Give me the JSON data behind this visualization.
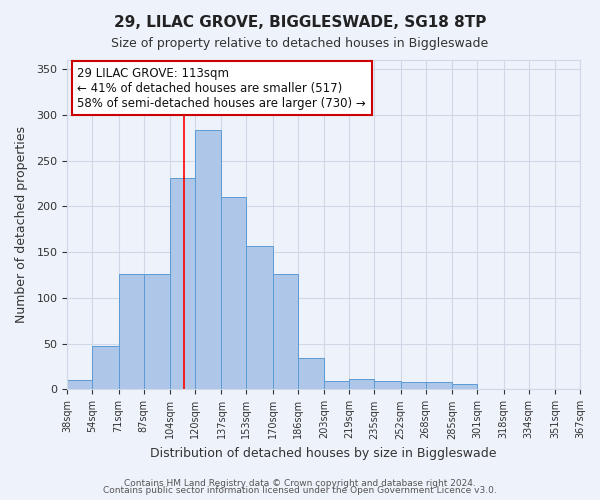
{
  "title": "29, LILAC GROVE, BIGGLESWADE, SG18 8TP",
  "subtitle": "Size of property relative to detached houses in Biggleswade",
  "xlabel": "Distribution of detached houses by size in Biggleswade",
  "ylabel": "Number of detached properties",
  "bin_labels": [
    "38sqm",
    "54sqm",
    "71sqm",
    "87sqm",
    "104sqm",
    "120sqm",
    "137sqm",
    "153sqm",
    "170sqm",
    "186sqm",
    "203sqm",
    "219sqm",
    "235sqm",
    "252sqm",
    "268sqm",
    "285sqm",
    "301sqm",
    "318sqm",
    "334sqm",
    "351sqm",
    "367sqm"
  ],
  "bin_edges": [
    38,
    54,
    71,
    87,
    104,
    120,
    137,
    153,
    170,
    186,
    203,
    219,
    235,
    252,
    268,
    285,
    301,
    318,
    334,
    351,
    367
  ],
  "bar_heights": [
    10,
    47,
    126,
    126,
    231,
    283,
    210,
    157,
    126,
    34,
    9,
    11,
    9,
    8,
    8,
    6,
    0,
    0,
    0,
    1
  ],
  "bar_color": "#aec6e8",
  "bar_edgecolor": "#5b9bd5",
  "grid_color": "#d0d8e8",
  "bg_color": "#eef2fa",
  "red_line_x": 113,
  "annotation_title": "29 LILAC GROVE: 113sqm",
  "annotation_line1": "← 41% of detached houses are smaller (517)",
  "annotation_line2": "58% of semi-detached houses are larger (730) →",
  "annotation_box_color": "#ffffff",
  "annotation_border_color": "#cc0000",
  "footer1": "Contains HM Land Registry data © Crown copyright and database right 2024.",
  "footer2": "Contains public sector information licensed under the Open Government Licence v3.0.",
  "ylim": [
    0,
    360
  ],
  "yticks": [
    0,
    50,
    100,
    150,
    200,
    250,
    300,
    350
  ]
}
